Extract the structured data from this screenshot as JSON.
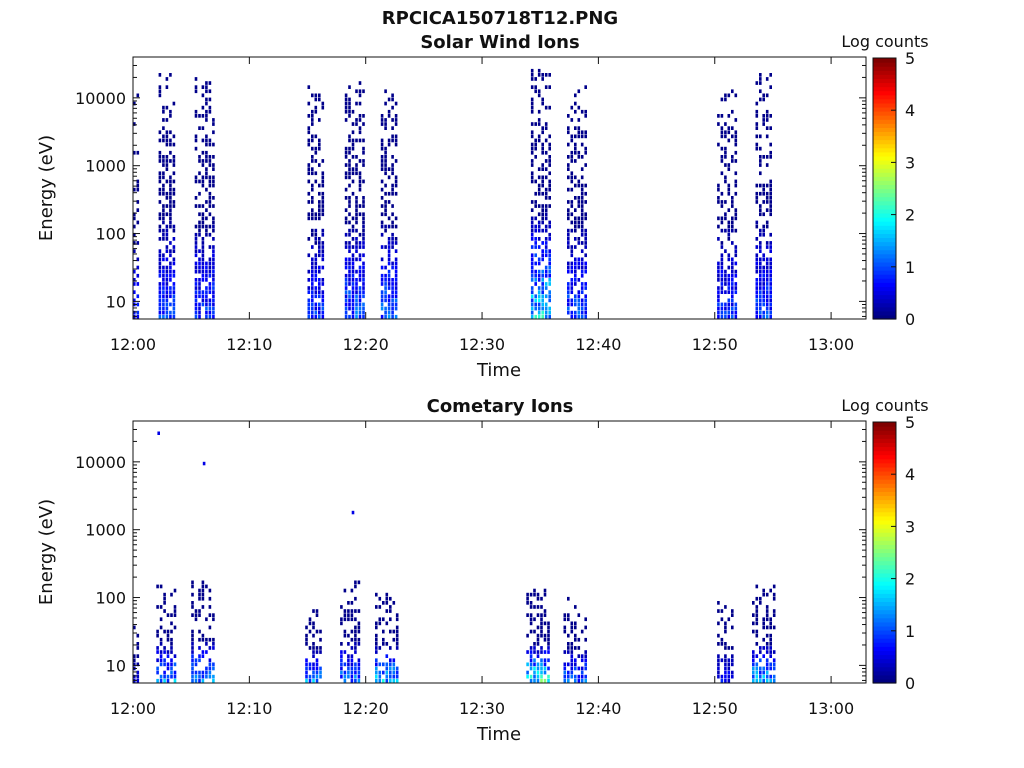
{
  "figure_title": "RPCICA150718T12.PNG",
  "colors": {
    "colormap": "jet",
    "axis": "#111111",
    "background": "#ffffff"
  },
  "chart_data": [
    {
      "type": "heatmap",
      "title": "Solar Wind Ions",
      "xlabel": "Time",
      "ylabel": "Energy (eV)",
      "xlim": [
        "12:00",
        "13:03"
      ],
      "ylim": [
        5.5,
        40000
      ],
      "yscale": "log",
      "x_ticks": [
        "12:00",
        "12:10",
        "12:20",
        "12:30",
        "12:40",
        "12:50",
        "13:00"
      ],
      "y_ticks": [
        "10",
        "100",
        "1000",
        "10000"
      ],
      "colorbar": {
        "label": "Log counts",
        "range": [
          0,
          5
        ],
        "ticks": [
          "0",
          "1",
          "2",
          "3",
          "4",
          "5"
        ]
      },
      "grid": false,
      "bursts": [
        {
          "t_start": 0.0,
          "t_end": 0.6,
          "e_min": 5.5,
          "e_max": 15000,
          "density": 0.35,
          "peak_log_counts": 1.0
        },
        {
          "t_start": 2.2,
          "t_end": 3.5,
          "e_min": 5.5,
          "e_max": 26000,
          "density": 0.6,
          "peak_log_counts": 1.3
        },
        {
          "t_start": 5.3,
          "t_end": 6.8,
          "e_min": 5.5,
          "e_max": 22000,
          "density": 0.6,
          "peak_log_counts": 1.3
        },
        {
          "t_start": 15.0,
          "t_end": 16.5,
          "e_min": 5.5,
          "e_max": 20000,
          "density": 0.55,
          "peak_log_counts": 1.2
        },
        {
          "t_start": 18.2,
          "t_end": 19.8,
          "e_min": 5.5,
          "e_max": 18000,
          "density": 0.6,
          "peak_log_counts": 1.5
        },
        {
          "t_start": 21.3,
          "t_end": 22.7,
          "e_min": 5.5,
          "e_max": 15000,
          "density": 0.6,
          "peak_log_counts": 1.6
        },
        {
          "t_start": 34.2,
          "t_end": 35.8,
          "e_min": 5.5,
          "e_max": 30000,
          "density": 0.6,
          "peak_log_counts": 2.4
        },
        {
          "t_start": 37.3,
          "t_end": 38.8,
          "e_min": 5.5,
          "e_max": 16000,
          "density": 0.6,
          "peak_log_counts": 1.4
        },
        {
          "t_start": 50.2,
          "t_end": 51.7,
          "e_min": 5.5,
          "e_max": 16000,
          "density": 0.55,
          "peak_log_counts": 1.2
        },
        {
          "t_start": 53.5,
          "t_end": 54.9,
          "e_min": 5.5,
          "e_max": 24000,
          "density": 0.6,
          "peak_log_counts": 1.3
        }
      ]
    },
    {
      "type": "heatmap",
      "title": "Cometary Ions",
      "xlabel": "Time",
      "ylabel": "Energy (eV)",
      "xlim": [
        "12:00",
        "13:03"
      ],
      "ylim": [
        5.5,
        40000
      ],
      "yscale": "log",
      "x_ticks": [
        "12:00",
        "12:10",
        "12:20",
        "12:30",
        "12:40",
        "12:50",
        "13:00"
      ],
      "y_ticks": [
        "10",
        "100",
        "1000",
        "10000"
      ],
      "colorbar": {
        "label": "Log counts",
        "range": [
          0,
          5
        ],
        "ticks": [
          "0",
          "1",
          "2",
          "3",
          "4",
          "5"
        ]
      },
      "grid": false,
      "bursts": [
        {
          "t_start": 0.0,
          "t_end": 0.5,
          "e_min": 20,
          "e_max": 45,
          "density": 0.5,
          "peak_log_counts": 0.8
        },
        {
          "t_start": 2.0,
          "t_end": 3.5,
          "e_min": 5.5,
          "e_max": 170,
          "density": 0.5,
          "peak_log_counts": 2.0
        },
        {
          "t_start": 5.0,
          "t_end": 6.8,
          "e_min": 5.5,
          "e_max": 200,
          "density": 0.5,
          "peak_log_counts": 2.1
        },
        {
          "t_start": 14.8,
          "t_end": 16.2,
          "e_min": 10,
          "e_max": 90,
          "density": 0.55,
          "peak_log_counts": 2.0
        },
        {
          "t_start": 17.8,
          "t_end": 19.5,
          "e_min": 5.5,
          "e_max": 200,
          "density": 0.55,
          "peak_log_counts": 1.8
        },
        {
          "t_start": 20.8,
          "t_end": 22.8,
          "e_min": 5.5,
          "e_max": 130,
          "density": 0.55,
          "peak_log_counts": 2.3
        },
        {
          "t_start": 33.8,
          "t_end": 35.6,
          "e_min": 10,
          "e_max": 140,
          "density": 0.6,
          "peak_log_counts": 3.0
        },
        {
          "t_start": 37.0,
          "t_end": 38.8,
          "e_min": 5.5,
          "e_max": 110,
          "density": 0.55,
          "peak_log_counts": 1.8
        },
        {
          "t_start": 50.2,
          "t_end": 51.6,
          "e_min": 5.5,
          "e_max": 100,
          "density": 0.5,
          "peak_log_counts": 1.0
        },
        {
          "t_start": 53.2,
          "t_end": 55.2,
          "e_min": 5.5,
          "e_max": 160,
          "density": 0.55,
          "peak_log_counts": 2.2
        }
      ],
      "isolated_points": [
        {
          "t": 2.1,
          "e": 28000,
          "log_counts": 0.5
        },
        {
          "t": 6.0,
          "e": 10000,
          "log_counts": 0.5
        },
        {
          "t": 18.8,
          "e": 1900,
          "log_counts": 0.5
        }
      ]
    }
  ]
}
